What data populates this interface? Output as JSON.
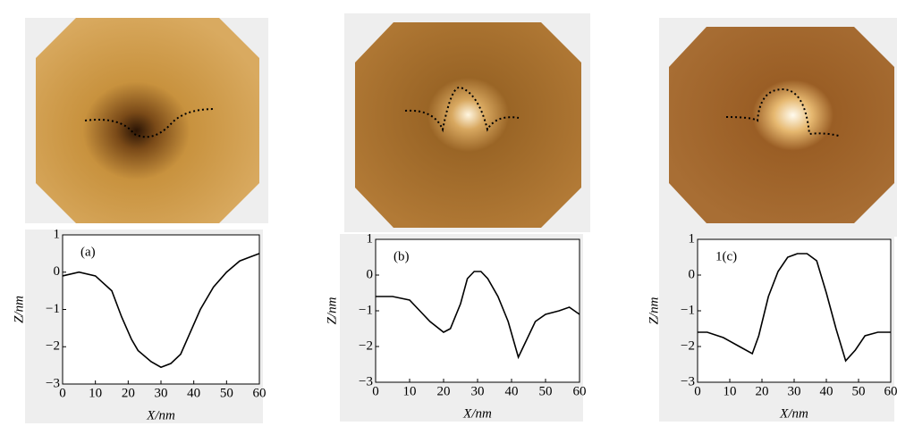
{
  "chart_data": [
    {
      "type": "line",
      "annotation": "(a)",
      "xlabel": "X/nm",
      "ylabel": "Z/nm",
      "x": [
        0,
        5,
        10,
        15,
        18,
        21,
        23,
        27,
        30,
        33,
        36,
        39,
        42,
        46,
        50,
        54,
        57,
        60
      ],
      "series": [
        {
          "color": "#000000",
          "values": [
            -0.1,
            0,
            -0.1,
            -0.5,
            -1.2,
            -1.8,
            -2.1,
            -2.4,
            -2.55,
            -2.45,
            -2.2,
            -1.6,
            -1.0,
            -0.4,
            0,
            0.3,
            0.4,
            0.5
          ]
        }
      ],
      "xlim": [
        0,
        60
      ],
      "xticks": [
        0,
        10,
        20,
        30,
        40,
        50,
        60
      ],
      "ylim": [
        -3,
        1
      ],
      "yticks": [
        {
          "value": -3,
          "label": "−3"
        },
        {
          "value": -2,
          "label": "−2"
        },
        {
          "value": -1,
          "label": "−1"
        },
        0,
        1
      ]
    },
    {
      "type": "line",
      "annotation": "(b)",
      "xlabel": "X/nm",
      "ylabel": "Z/nm",
      "x": [
        0,
        5,
        10,
        13,
        16,
        20,
        22,
        25,
        27,
        29,
        31,
        33,
        36,
        39,
        42,
        44,
        47,
        50,
        54,
        57,
        60
      ],
      "series": [
        {
          "color": "#000000",
          "values": [
            -0.6,
            -0.6,
            -0.7,
            -1.0,
            -1.3,
            -1.6,
            -1.5,
            -0.8,
            -0.1,
            0.1,
            0.1,
            -0.1,
            -0.6,
            -1.3,
            -2.3,
            -1.9,
            -1.3,
            -1.1,
            -1.0,
            -0.9,
            -1.1
          ]
        }
      ],
      "xlim": [
        0,
        60
      ],
      "xticks": [
        0,
        10,
        20,
        30,
        40,
        50,
        60
      ],
      "ylim": [
        -3,
        1
      ],
      "yticks": [
        {
          "value": -3,
          "label": "−3"
        },
        {
          "value": -2,
          "label": "−2"
        },
        {
          "value": -1,
          "label": "−1"
        },
        0,
        1
      ]
    },
    {
      "type": "line",
      "annotation": "1(c)",
      "xlabel": "X/nm",
      "ylabel": "Z/nm",
      "x": [
        0,
        3,
        8,
        13,
        17,
        19,
        22,
        25,
        28,
        31,
        34,
        37,
        40,
        43,
        46,
        49,
        52,
        56,
        60
      ],
      "series": [
        {
          "color": "#000000",
          "values": [
            -1.6,
            -1.6,
            -1.75,
            -2.0,
            -2.2,
            -1.7,
            -0.6,
            0.1,
            0.5,
            0.6,
            0.6,
            0.4,
            -0.5,
            -1.5,
            -2.4,
            -2.1,
            -1.7,
            -1.6,
            -1.6
          ]
        }
      ],
      "xlim": [
        0,
        60
      ],
      "xticks": [
        0,
        10,
        20,
        30,
        40,
        50,
        60
      ],
      "ylim": [
        -3,
        1
      ],
      "yticks": [
        {
          "value": -3,
          "label": "−3"
        },
        {
          "value": -2,
          "label": "−2"
        },
        {
          "value": -1,
          "label": "−1"
        },
        0,
        1
      ]
    }
  ]
}
